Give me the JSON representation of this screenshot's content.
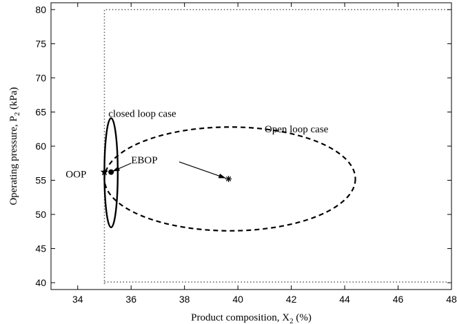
{
  "chart_data": {
    "type": "line",
    "xlabel": "Product composition, X",
    "xlabel_sub": "2",
    "xlabel_unit": " (%)",
    "ylabel": "Operating pressure, P",
    "ylabel_sub": "2",
    "ylabel_unit": " (kPa)",
    "xlim": [
      33,
      48
    ],
    "ylim": [
      39,
      81
    ],
    "xticks": [
      34,
      36,
      38,
      40,
      42,
      44,
      46,
      48
    ],
    "yticks": [
      40,
      45,
      50,
      55,
      60,
      65,
      70,
      75,
      80
    ],
    "grid": false,
    "series": [
      {
        "name": "closed loop case",
        "style": "solid",
        "ellipse": {
          "cx": 35.25,
          "cy": 56.1,
          "rx": 0.25,
          "ry": 8.0
        }
      },
      {
        "name": "Open loop case",
        "style": "dashed",
        "ellipse": {
          "cx": 39.7,
          "cy": 55.2,
          "rx": 4.7,
          "ry": 7.6
        }
      }
    ],
    "constraints": [
      {
        "style": "dotted",
        "points": [
          [
            35,
            39.8
          ],
          [
            35,
            80
          ],
          [
            47.9,
            80
          ]
        ]
      },
      {
        "style": "dotted",
        "points": [
          [
            35,
            40.1
          ],
          [
            47.9,
            40.1
          ]
        ]
      }
    ],
    "points": [
      {
        "label": "OOP",
        "marker": "star",
        "x": 35.0,
        "y": 56.2
      },
      {
        "label": "EBOP",
        "marker": "dot",
        "x": 35.25,
        "y": 56.2
      },
      {
        "label": "",
        "marker": "asterisk",
        "x": 39.65,
        "y": 55.2
      }
    ],
    "annotations": [
      {
        "text": "closed loop case",
        "x": 35.15,
        "y": 64.3
      },
      {
        "text": "Open loop case",
        "x": 41.0,
        "y": 62.0
      },
      {
        "text": "EBOP",
        "x": 36.0,
        "y": 57.5
      },
      {
        "text": "OOP",
        "x": 33.55,
        "y": 55.4
      }
    ],
    "arrows": [
      {
        "from": [
          36.0,
          57.5
        ],
        "to": [
          35.3,
          56.3
        ]
      },
      {
        "from": [
          37.8,
          57.7
        ],
        "to": [
          39.55,
          55.3
        ]
      }
    ]
  }
}
